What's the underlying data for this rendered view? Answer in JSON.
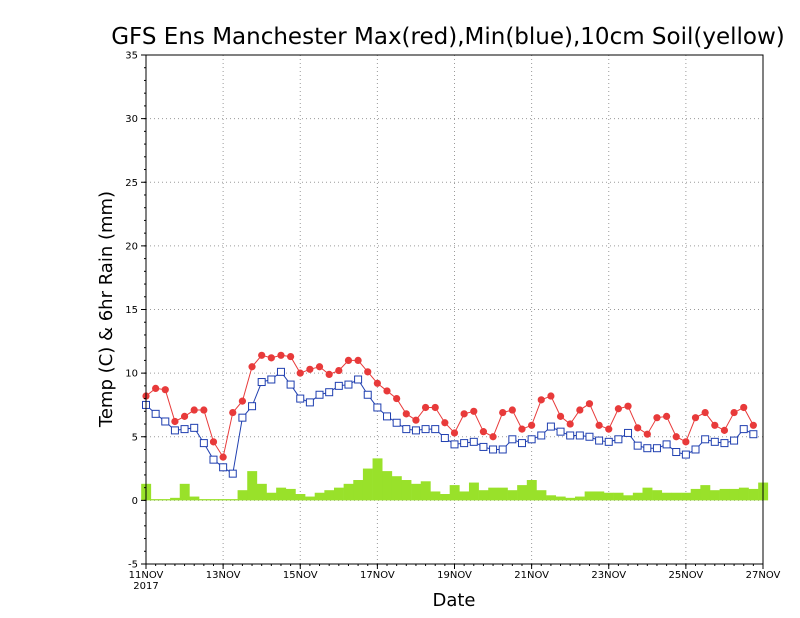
{
  "chart_data": {
    "type": "line",
    "title": "GFS Ens Manchester Max(red),Min(blue),10cm Soil(yellow)",
    "xlabel": "Date",
    "ylabel": "Temp (C) & 6hr Rain (mm)",
    "ylim": [
      -5,
      35
    ],
    "yticks": [
      -5,
      0,
      5,
      10,
      15,
      20,
      25,
      30,
      35
    ],
    "xlim": [
      0,
      64
    ],
    "xticks": [
      {
        "x": 0,
        "label": "11NOV",
        "sublabel": "2017"
      },
      {
        "x": 8,
        "label": "13NOV"
      },
      {
        "x": 16,
        "label": "15NOV"
      },
      {
        "x": 24,
        "label": "17NOV"
      },
      {
        "x": 32,
        "label": "19NOV"
      },
      {
        "x": 40,
        "label": "21NOV"
      },
      {
        "x": 48,
        "label": "23NOV"
      },
      {
        "x": 56,
        "label": "25NOV"
      },
      {
        "x": 64,
        "label": "27NOV"
      }
    ],
    "grid": true,
    "series": [
      {
        "style": "line-filled-circle",
        "color": "#e83a3a",
        "values": [
          8.2,
          8.8,
          8.7,
          6.2,
          6.6,
          7.1,
          7.1,
          4.6,
          3.4,
          6.9,
          7.8,
          10.5,
          11.4,
          11.2,
          11.4,
          11.3,
          10.0,
          10.3,
          10.5,
          9.9,
          10.2,
          11.0,
          11.0,
          10.1,
          9.2,
          8.6,
          8.0,
          6.8,
          6.3,
          7.3,
          7.3,
          6.1,
          5.3,
          6.8,
          7.0,
          5.4,
          5.0,
          6.9,
          7.1,
          5.6,
          5.9,
          7.9,
          8.2,
          6.6,
          6.0,
          7.1,
          7.6,
          5.9,
          5.6,
          7.2,
          7.4,
          5.7,
          5.2,
          6.5,
          6.6,
          5.0,
          4.6,
          6.5,
          6.9,
          5.9,
          5.5,
          6.9,
          7.3,
          5.9
        ]
      },
      {
        "style": "line-open-square",
        "color": "#1f3fb0",
        "values": [
          7.5,
          6.8,
          6.2,
          5.5,
          5.6,
          5.7,
          4.5,
          3.2,
          2.6,
          2.1,
          6.5,
          7.4,
          9.3,
          9.5,
          10.1,
          9.1,
          8.0,
          7.7,
          8.3,
          8.5,
          9.0,
          9.1,
          9.5,
          8.3,
          7.3,
          6.6,
          6.1,
          5.6,
          5.5,
          5.6,
          5.6,
          4.9,
          4.4,
          4.5,
          4.6,
          4.2,
          4.0,
          4.0,
          4.8,
          4.5,
          4.8,
          5.1,
          5.8,
          5.4,
          5.1,
          5.1,
          5.0,
          4.7,
          4.6,
          4.8,
          5.3,
          4.3,
          4.1,
          4.1,
          4.4,
          3.8,
          3.6,
          4.0,
          4.8,
          4.6,
          4.5,
          4.7,
          5.6,
          5.2
        ]
      },
      {
        "style": "bar",
        "color": "#99e12a",
        "values": [
          1.3,
          0.1,
          0.1,
          0.2,
          1.3,
          0.3,
          0.1,
          0.1,
          0.1,
          0.1,
          0.8,
          2.3,
          1.3,
          0.6,
          1.0,
          0.9,
          0.5,
          0.3,
          0.6,
          0.8,
          1.0,
          1.3,
          1.6,
          2.5,
          3.3,
          2.3,
          1.9,
          1.6,
          1.3,
          1.5,
          0.7,
          0.5,
          1.2,
          0.7,
          1.4,
          0.8,
          1.0,
          1.0,
          0.8,
          1.2,
          1.6,
          0.8,
          0.4,
          0.3,
          0.2,
          0.3,
          0.7,
          0.7,
          0.6,
          0.6,
          0.4,
          0.6,
          1.0,
          0.8,
          0.6,
          0.6,
          0.6,
          0.9,
          1.2,
          0.8,
          0.9,
          0.9,
          1.0,
          0.9,
          1.4
        ]
      }
    ]
  }
}
